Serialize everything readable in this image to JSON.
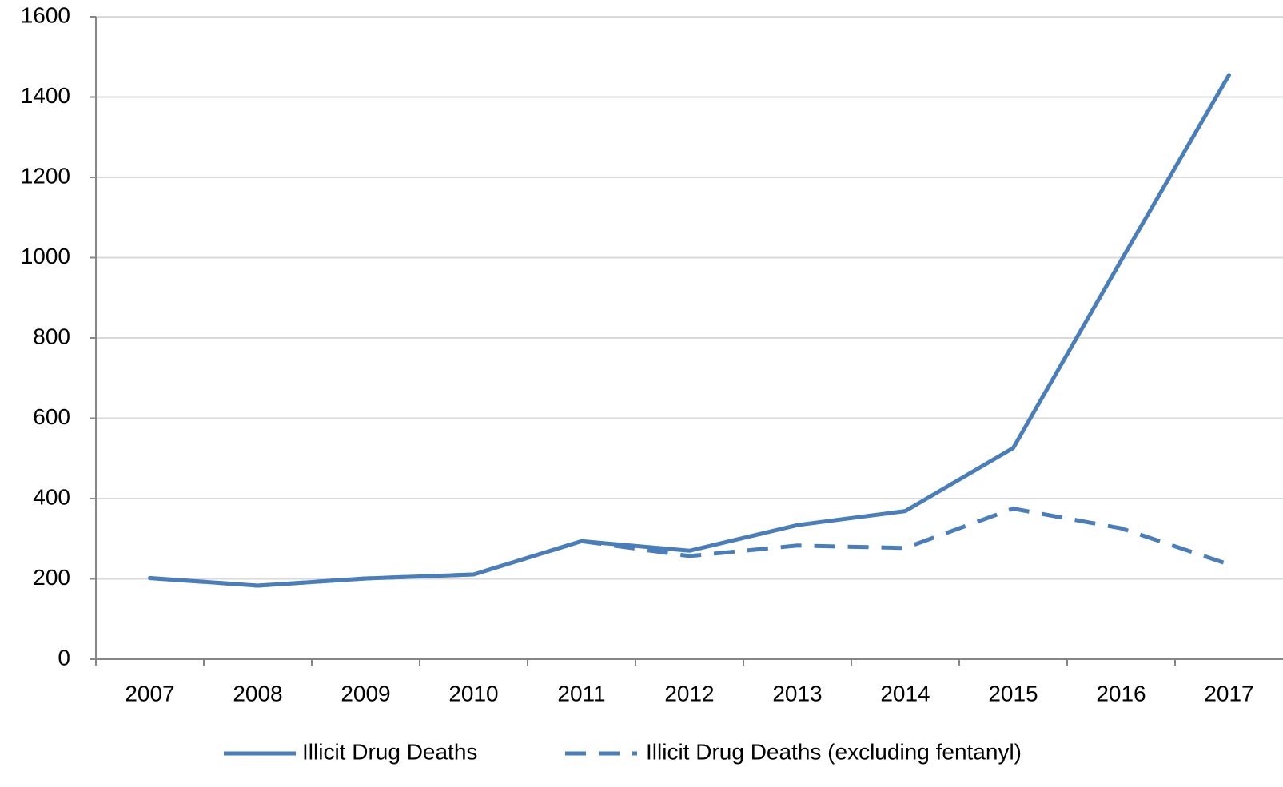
{
  "chart_data": {
    "type": "line",
    "title": "",
    "xlabel": "",
    "ylabel": "",
    "categories": [
      "2007",
      "2008",
      "2009",
      "2010",
      "2011",
      "2012",
      "2013",
      "2014",
      "2015",
      "2016",
      "2017"
    ],
    "ylim": [
      0,
      1600
    ],
    "yticks": [
      0,
      200,
      400,
      600,
      800,
      1000,
      1200,
      1400,
      1600
    ],
    "grid": "horizontal",
    "legend_position": "bottom",
    "series": [
      {
        "name": "Illicit Drug Deaths",
        "style": "solid",
        "color": "#4a7ebb",
        "values": [
          202,
          183,
          201,
          211,
          294,
          270,
          334,
          369,
          526,
          993,
          1455
        ]
      },
      {
        "name": "Illicit Drug Deaths (excluding fentanyl)",
        "style": "dashed",
        "color": "#4a7ebb",
        "values": [
          202,
          183,
          201,
          211,
          294,
          257,
          283,
          277,
          375,
          326,
          236
        ]
      }
    ]
  }
}
